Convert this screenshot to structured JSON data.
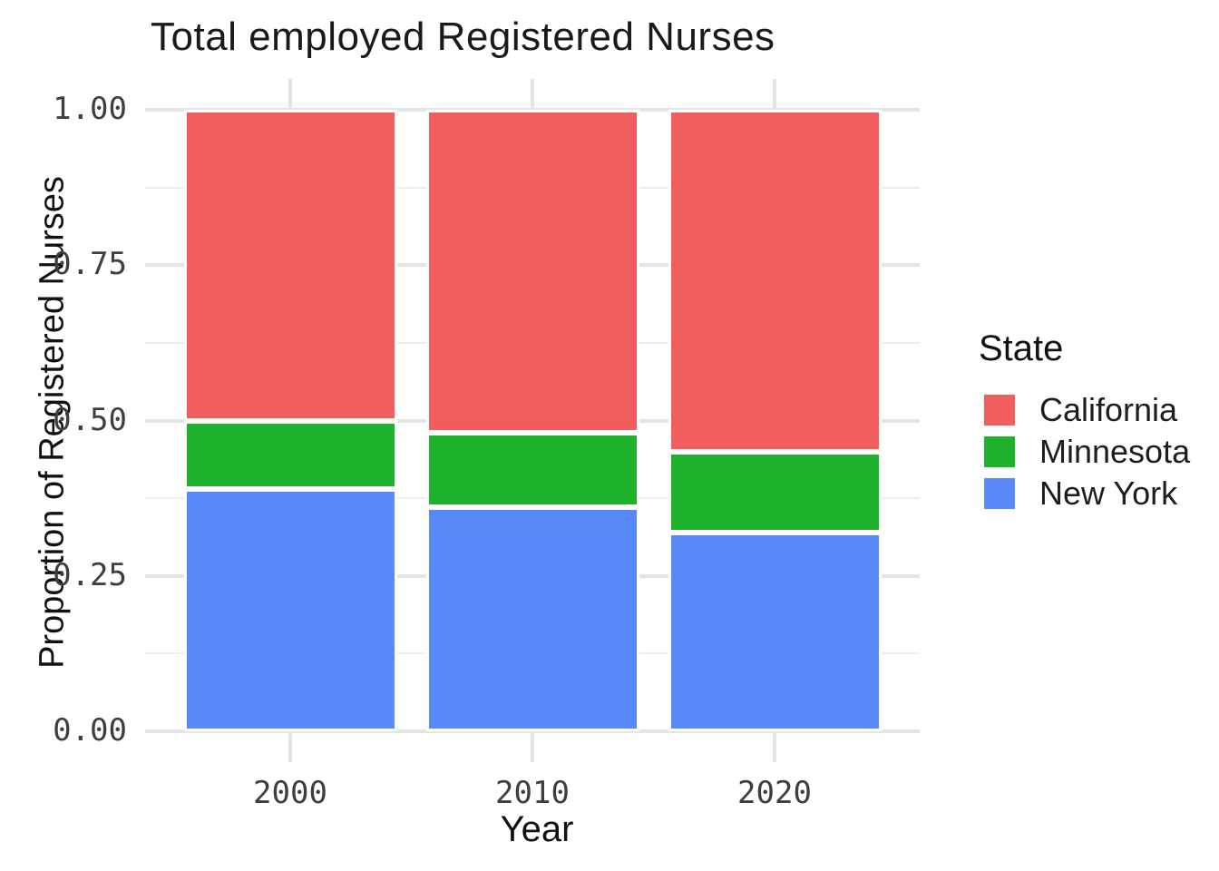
{
  "title": "Total employed Registered Nurses",
  "axes": {
    "x_title": "Year",
    "y_title": "Proportion of Registered Nurses",
    "y_ticks": [
      {
        "value": 0.0,
        "label": "0.00"
      },
      {
        "value": 0.25,
        "label": "0.25"
      },
      {
        "value": 0.5,
        "label": "0.50"
      },
      {
        "value": 0.75,
        "label": "0.75"
      },
      {
        "value": 1.0,
        "label": "1.00"
      }
    ],
    "y_minor_ticks": [
      0.125,
      0.375,
      0.625,
      0.875
    ]
  },
  "legend": {
    "title": "State"
  },
  "chart_data": {
    "type": "bar",
    "stacked": true,
    "title": "Total employed Registered Nurses",
    "xlabel": "Year",
    "ylabel": "Proportion of Registered Nurses",
    "categories": [
      "2000",
      "2010",
      "2020"
    ],
    "series": [
      {
        "name": "California",
        "color": "#F25D5D",
        "values": [
          0.5,
          0.52,
          0.55
        ]
      },
      {
        "name": "Minnesota",
        "color": "#1EB12B",
        "values": [
          0.11,
          0.12,
          0.13
        ]
      },
      {
        "name": "New York",
        "color": "#5789F8",
        "values": [
          0.39,
          0.36,
          0.32
        ]
      }
    ],
    "ylim": [
      0,
      1
    ],
    "grid": true,
    "legend_position": "right"
  }
}
